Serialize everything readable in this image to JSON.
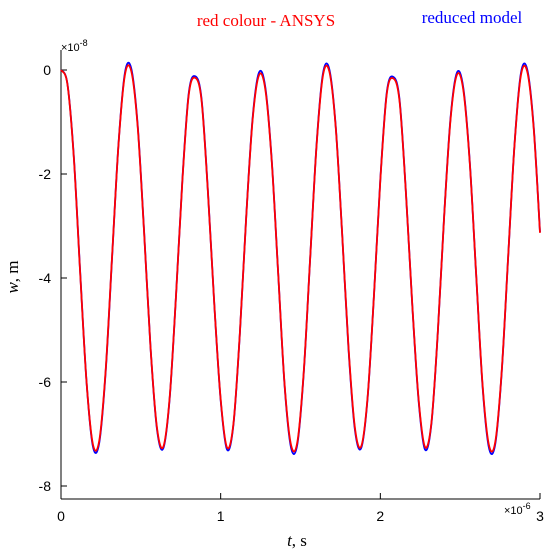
{
  "chart_data": {
    "type": "line",
    "title": "",
    "xlabel_italic": "t",
    "xlabel_unit": ", s",
    "ylabel_italic": "w",
    "ylabel_unit": ", m",
    "x_multiplier": "×10",
    "x_multiplier_exp": "-6",
    "y_multiplier": "×10",
    "y_multiplier_exp": "-8",
    "xlim": [
      0,
      3
    ],
    "ylim": [
      -8,
      0.4
    ],
    "x_ticks": [
      0,
      1,
      2,
      3
    ],
    "x_tick_labels": [
      "0",
      "1",
      "2",
      "3"
    ],
    "y_ticks": [
      0,
      -2,
      -4,
      -6,
      -8
    ],
    "y_tick_labels": [
      "0",
      "-2",
      "-4",
      "-6",
      "-8"
    ],
    "grid": false,
    "legend_placement": "top",
    "series": [
      {
        "name": "reduced model",
        "color": "#0000ff",
        "x": [
          0,
          0.04,
          0.08,
          0.12,
          0.16,
          0.2,
          0.24,
          0.28,
          0.32,
          0.36,
          0.4,
          0.44,
          0.48,
          0.52,
          0.56,
          0.6,
          0.64,
          0.68,
          0.72,
          0.76,
          0.8,
          0.84,
          0.88,
          0.92,
          0.96,
          1.0,
          1.04,
          1.08,
          1.12,
          1.16,
          1.2,
          1.24,
          1.28,
          1.32,
          1.36,
          1.4,
          1.44,
          1.48,
          1.52,
          1.56,
          1.6,
          1.64,
          1.68,
          1.72,
          1.76,
          1.8,
          1.84,
          1.88,
          1.92,
          1.96,
          2.0,
          2.04,
          2.08,
          2.12,
          2.16,
          2.2,
          2.24,
          2.28,
          2.32,
          2.36,
          2.4,
          2.44,
          2.48,
          2.52,
          2.56,
          2.6,
          2.64,
          2.68,
          2.72,
          2.76,
          2.8,
          2.84,
          2.88,
          2.92,
          2.96,
          3.0
        ],
        "y": [
          0,
          -0.26,
          -1.65,
          -3.88,
          -6.0,
          -7.24,
          -7.16,
          -5.79,
          -3.6,
          -1.43,
          -0.06,
          0.03,
          -1.05,
          -3.08,
          -5.3,
          -6.88,
          -7.28,
          -6.34,
          -4.36,
          -2.12,
          -0.45,
          -0.12,
          -0.55,
          -2.32,
          -4.5,
          -6.35,
          -7.3,
          -6.82,
          -5.08,
          -2.82,
          -0.93,
          -0.05,
          -0.34,
          -1.74,
          -3.9,
          -6.05,
          -7.25,
          -7.2,
          -5.84,
          -3.65,
          -1.46,
          -0.08,
          0.02,
          -1.06,
          -3.1,
          -5.33,
          -6.9,
          -7.27,
          -6.32,
          -4.34,
          -2.1,
          -0.44,
          -0.13,
          -0.56,
          -2.34,
          -4.52,
          -6.37,
          -7.3,
          -6.8,
          -5.05,
          -2.79,
          -0.91,
          -0.05,
          -0.35,
          -1.76,
          -3.93,
          -6.07,
          -7.26,
          -7.19,
          -5.82,
          -3.63,
          -1.45,
          -0.07,
          0.01,
          -1.07,
          -3.12
        ]
      },
      {
        "name": "red colour - ANSYS",
        "color": "#ff0000",
        "x": [
          0,
          0.04,
          0.08,
          0.12,
          0.16,
          0.2,
          0.24,
          0.28,
          0.32,
          0.36,
          0.4,
          0.44,
          0.48,
          0.52,
          0.56,
          0.6,
          0.64,
          0.68,
          0.72,
          0.76,
          0.8,
          0.84,
          0.88,
          0.92,
          0.96,
          1.0,
          1.04,
          1.08,
          1.12,
          1.16,
          1.2,
          1.24,
          1.28,
          1.32,
          1.36,
          1.4,
          1.44,
          1.48,
          1.52,
          1.56,
          1.6,
          1.64,
          1.68,
          1.72,
          1.76,
          1.8,
          1.84,
          1.88,
          1.92,
          1.96,
          2.0,
          2.04,
          2.08,
          2.12,
          2.16,
          2.2,
          2.24,
          2.28,
          2.32,
          2.36,
          2.4,
          2.44,
          2.48,
          2.52,
          2.56,
          2.6,
          2.64,
          2.68,
          2.72,
          2.76,
          2.8,
          2.84,
          2.88,
          2.92,
          2.96,
          3.0
        ],
        "y": [
          0,
          -0.27,
          -1.67,
          -3.9,
          -6.0,
          -7.2,
          -7.12,
          -5.76,
          -3.58,
          -1.44,
          -0.1,
          -0.02,
          -1.08,
          -3.1,
          -5.3,
          -6.85,
          -7.25,
          -6.32,
          -4.36,
          -2.14,
          -0.48,
          -0.15,
          -0.58,
          -2.34,
          -4.5,
          -6.33,
          -7.26,
          -6.8,
          -5.07,
          -2.83,
          -0.96,
          -0.1,
          -0.38,
          -1.76,
          -3.9,
          -6.03,
          -7.2,
          -7.16,
          -5.82,
          -3.65,
          -1.48,
          -0.12,
          -0.02,
          -1.08,
          -3.1,
          -5.3,
          -6.86,
          -7.24,
          -6.3,
          -4.34,
          -2.12,
          -0.47,
          -0.16,
          -0.59,
          -2.35,
          -4.51,
          -6.34,
          -7.25,
          -6.78,
          -5.04,
          -2.8,
          -0.94,
          -0.09,
          -0.39,
          -1.78,
          -3.92,
          -6.04,
          -7.21,
          -7.15,
          -5.8,
          -3.62,
          -1.46,
          -0.11,
          -0.03,
          -1.1,
          -3.13
        ]
      }
    ]
  }
}
